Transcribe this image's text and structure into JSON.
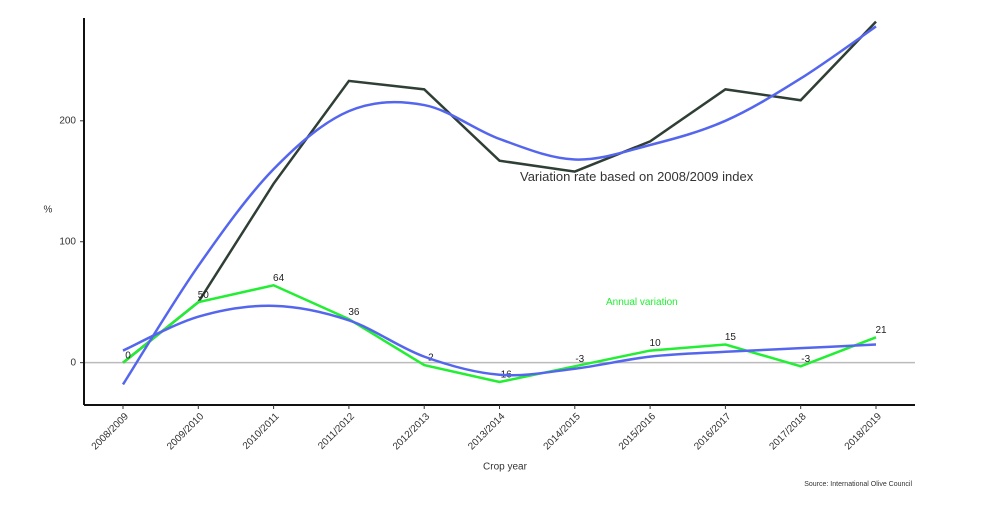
{
  "chart_data": {
    "type": "line",
    "x_label": "Crop year",
    "y_label": "%",
    "source": "Source: International Olive Council",
    "categories": [
      "2008/2009",
      "2009/2010",
      "2010/2011",
      "2011/2012",
      "2012/2013",
      "2013/2014",
      "2014/2015",
      "2015/2016",
      "2016/2017",
      "2017/2018",
      "2018/2019"
    ],
    "ylim": [
      -35,
      285
    ],
    "yticks": [
      0,
      100,
      200
    ],
    "reference_line": 0,
    "series": [
      {
        "name": "Variation rate based on 2008/2009 index",
        "color": "#2f3f35",
        "values": [
          0,
          50,
          148,
          233,
          226,
          167,
          158,
          183,
          226,
          217,
          282
        ]
      },
      {
        "name": "Annual variation",
        "color": "#22ee33",
        "data_labels": true,
        "values": [
          0,
          50,
          64,
          36,
          -2,
          -16,
          -3,
          10,
          15,
          -3,
          21
        ]
      },
      {
        "color": "#5566ee",
        "smooth": true,
        "values": [
          -18,
          80,
          160,
          208,
          213,
          185,
          168,
          180,
          200,
          235,
          278
        ]
      },
      {
        "color": "#5566ee",
        "smooth": true,
        "values": [
          10,
          38,
          47,
          35,
          5,
          -10,
          -5,
          5,
          9,
          12,
          15
        ]
      }
    ]
  }
}
